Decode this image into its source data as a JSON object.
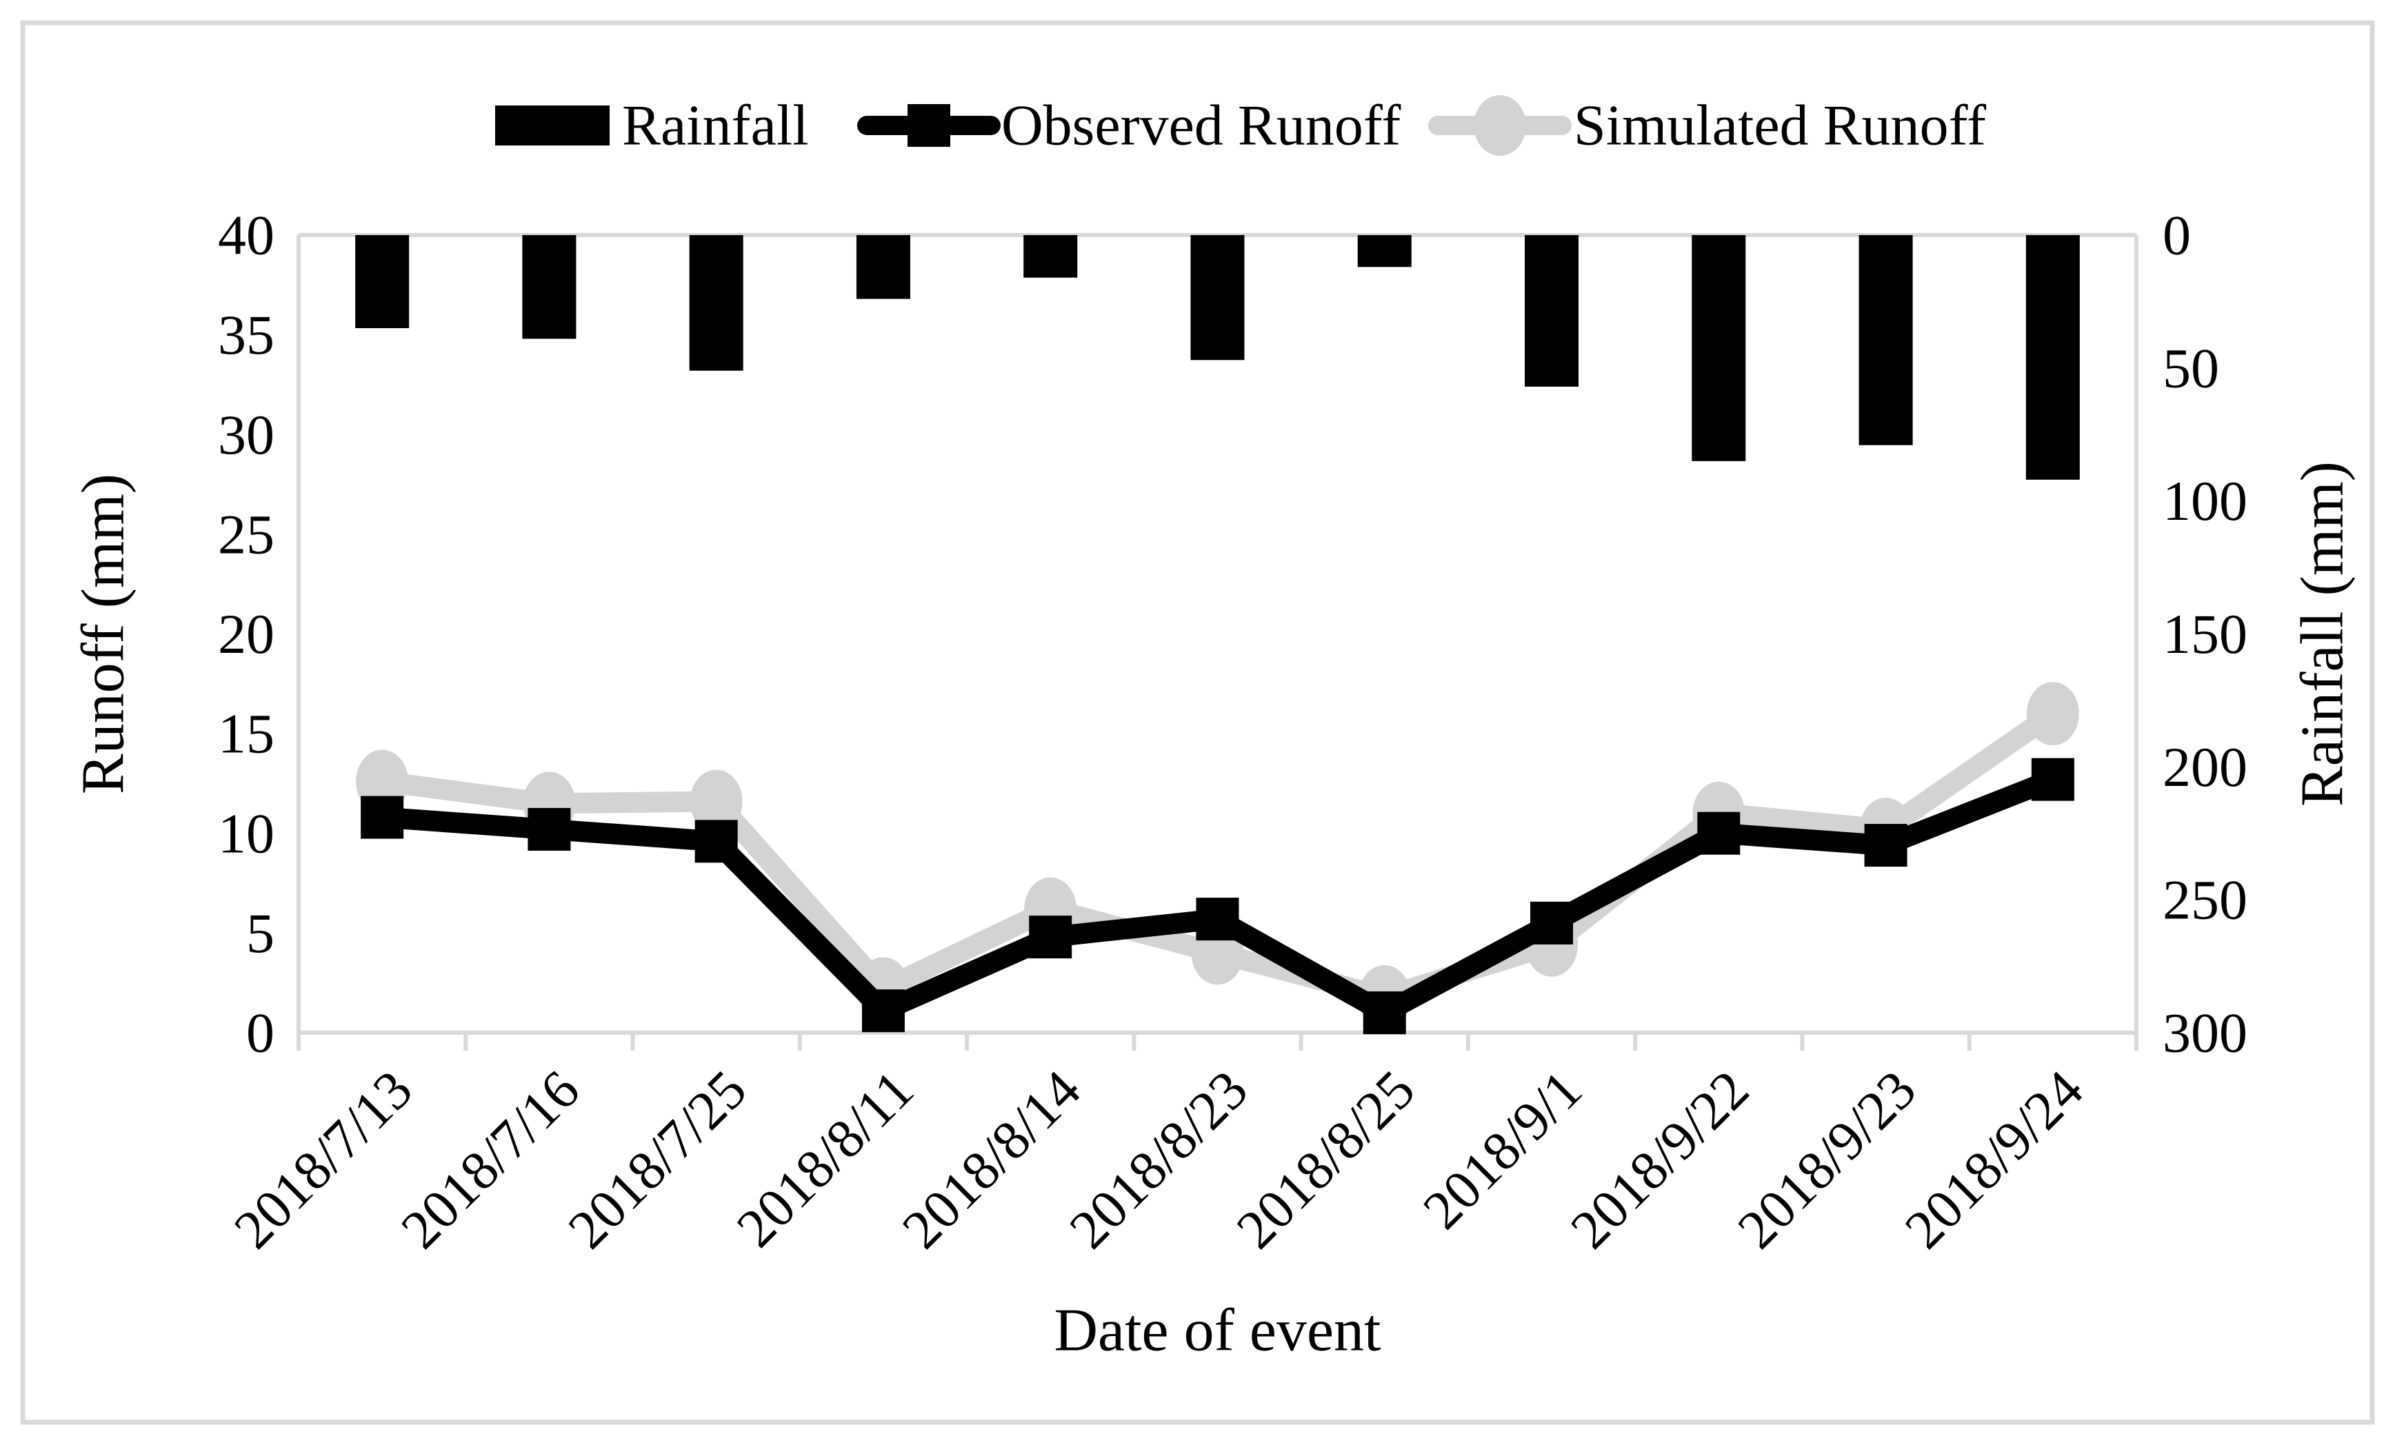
{
  "styles": {
    "background": "#ffffff",
    "axis_color": "#d9d9d9",
    "figure_border_color": "#d9d9d9",
    "text_color": "#000000",
    "observed_color": "#000000",
    "simulated_color": "#d3d3d3",
    "bar_color": "#000000"
  },
  "chart_data": {
    "type": "combo-bar-line",
    "title": "",
    "categories": [
      "2018/7/13",
      "2018/7/16",
      "2018/7/25",
      "2018/8/11",
      "2018/8/14",
      "2018/8/23",
      "2018/8/25",
      "2018/9/1",
      "2018/9/22",
      "2018/9/23",
      "2018/9/24"
    ],
    "x_axis": {
      "title": "Date of event"
    },
    "left_axis": {
      "title": "Runoff (mm)",
      "min": 0,
      "max": 40,
      "step": 5,
      "tick_labels": [
        "40",
        "35",
        "30",
        "25",
        "20",
        "15",
        "10",
        "5",
        "0"
      ]
    },
    "right_axis": {
      "title": "Rainfall (mm)",
      "min": 0,
      "max": 300,
      "step": 50,
      "inverted": true,
      "tick_labels": [
        "0",
        "50",
        "100",
        "150",
        "200",
        "250",
        "300"
      ]
    },
    "legend": {
      "position": "top",
      "entries": [
        "Rainfall",
        "Observed Runoff",
        "Simulated Runoff"
      ]
    },
    "series": [
      {
        "name": "Rainfall",
        "type": "bar",
        "axis": "right",
        "marker": "none",
        "values": [
          35,
          39,
          51,
          24,
          16,
          47,
          12,
          57,
          85,
          79,
          92
        ]
      },
      {
        "name": "Observed Runoff",
        "type": "line",
        "axis": "left",
        "marker": "square",
        "values": [
          10.8,
          10.2,
          9.6,
          1.1,
          4.8,
          5.7,
          1.0,
          5.5,
          10.0,
          9.4,
          12.7
        ]
      },
      {
        "name": "Simulated Runoff",
        "type": "line",
        "axis": "left",
        "marker": "circle",
        "values": [
          12.6,
          11.5,
          11.6,
          2.2,
          6.2,
          4.0,
          1.8,
          4.4,
          11.0,
          10.2,
          16.0
        ]
      }
    ],
    "grid": false
  }
}
